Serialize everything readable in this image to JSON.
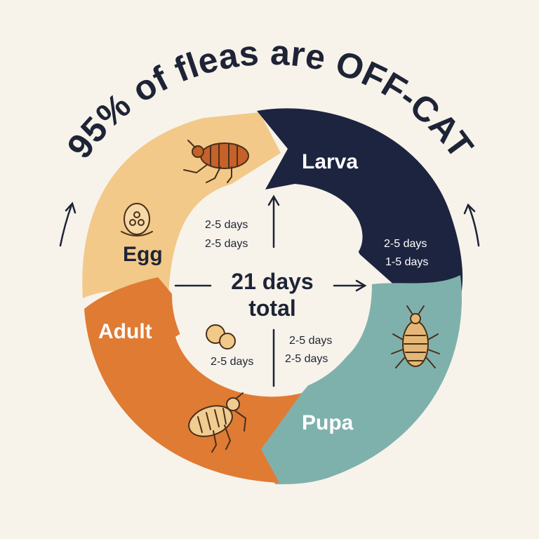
{
  "title": "95% of fleas are OFF-CAT",
  "center": {
    "line1": "21 days",
    "line2": "total"
  },
  "stages": {
    "egg": {
      "label": "Egg",
      "icon": "egg-cluster-icon",
      "color": "#f2c988",
      "duration_lines": [
        "2-5 days",
        "2-5 days"
      ]
    },
    "larva": {
      "label": "Larva",
      "icon": "adult-flea-icon",
      "color": "#1c2440",
      "duration_lines": [
        "2-5 days",
        "1-5 days"
      ]
    },
    "pupa": {
      "label": "Pupa",
      "icon": "pupa-icon",
      "color": "#7fb1ac",
      "duration_lines": [
        "2-5 days",
        "2-5 days"
      ]
    },
    "adult": {
      "label": "Adult",
      "icon": "flea-icon",
      "color": "#e07b34",
      "duration_lines": [
        "2-5 days"
      ]
    }
  }
}
